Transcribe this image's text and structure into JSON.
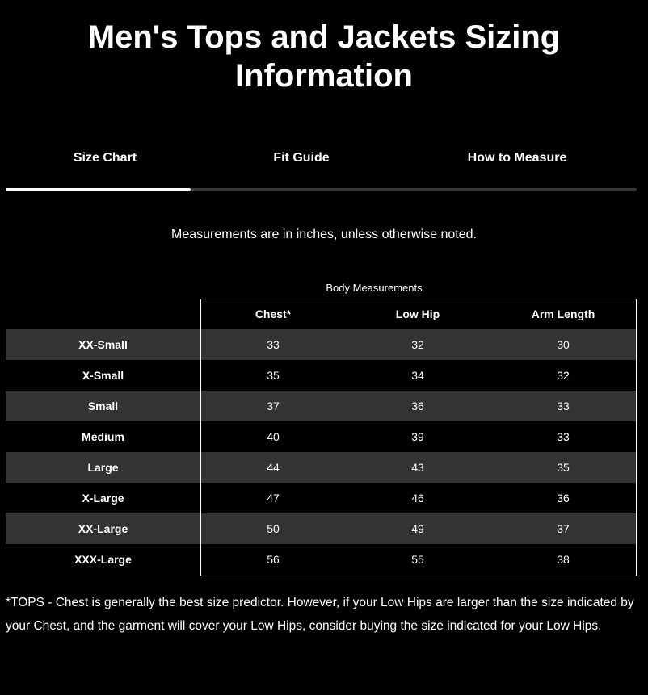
{
  "title": "Men's Tops and Jackets Sizing Information",
  "tabs": [
    {
      "label": "Size Chart",
      "active": true
    },
    {
      "label": "Fit Guide",
      "active": false
    },
    {
      "label": "How to Measure",
      "active": false
    }
  ],
  "note": "Measurements are in inches, unless otherwise noted.",
  "table": {
    "group_header": "Body Measurements",
    "columns": [
      "Chest*",
      "Low Hip",
      "Arm Length"
    ],
    "rows": [
      {
        "size": "XX-Small",
        "values": [
          "33",
          "32",
          "30"
        ]
      },
      {
        "size": "X-Small",
        "values": [
          "35",
          "34",
          "32"
        ]
      },
      {
        "size": "Small",
        "values": [
          "37",
          "36",
          "33"
        ]
      },
      {
        "size": "Medium",
        "values": [
          "40",
          "39",
          "33"
        ]
      },
      {
        "size": "Large",
        "values": [
          "44",
          "43",
          "35"
        ]
      },
      {
        "size": "X-Large",
        "values": [
          "47",
          "46",
          "36"
        ]
      },
      {
        "size": "XX-Large",
        "values": [
          "50",
          "49",
          "37"
        ]
      },
      {
        "size": "XXX-Large",
        "values": [
          "56",
          "55",
          "38"
        ]
      }
    ]
  },
  "footnote": "*TOPS - Chest is generally the best size predictor. However, if your Low Hips are larger than the size indicated by your Chest, and the garment will cover your Low Hips, consider buying the size indicated for your Low Hips."
}
